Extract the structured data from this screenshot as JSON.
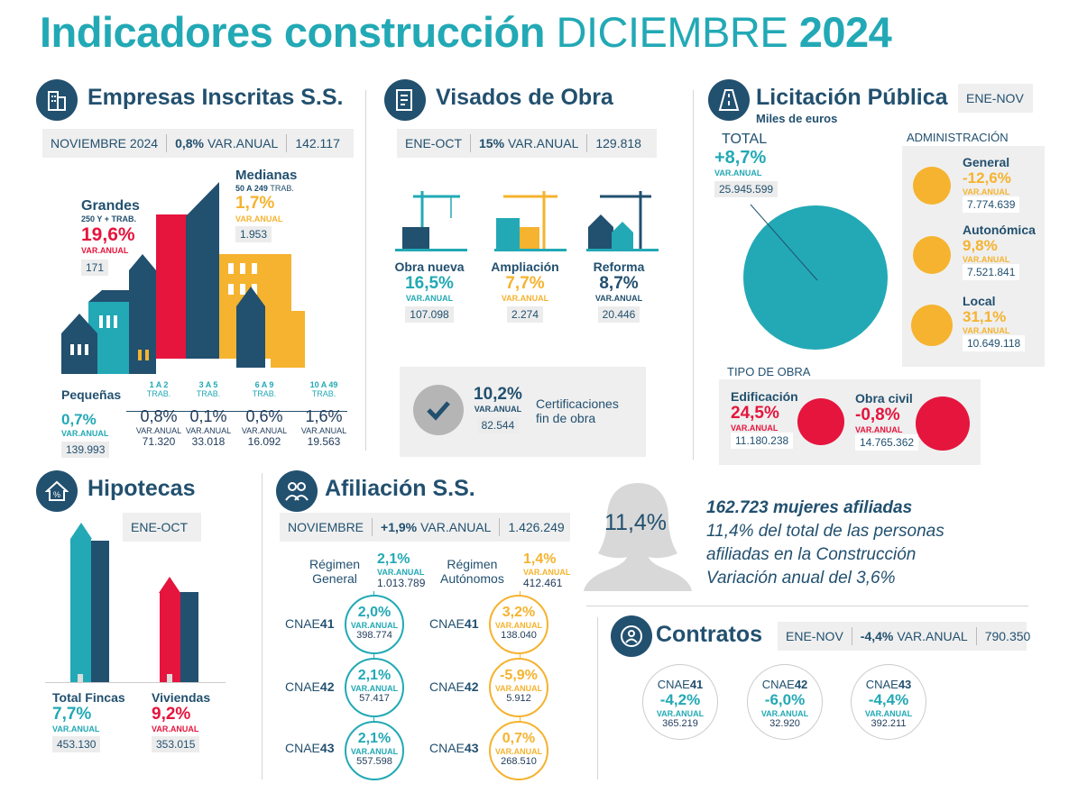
{
  "title": {
    "part1": "Indicadores construcción",
    "part2": "DICIEMBRE",
    "part3": "2024"
  },
  "empresas": {
    "title": "Empresas Inscritas S.S.",
    "bar": {
      "period": "NOVIEMBRE 2024",
      "pct": "0,8%",
      "label": "VAR.ANUAL",
      "total": "142.117"
    },
    "grandes": {
      "label": "Grandes",
      "sub": "250 Y + TRAB.",
      "pct": "19,6%",
      "va": "VAR.ANUAL",
      "num": "171"
    },
    "medianas": {
      "label": "Medianas",
      "sub": "50 A 249",
      "sub2": "TRAB.",
      "pct": "1,7%",
      "va": "VAR.ANUAL",
      "num": "1.953"
    },
    "pequenas": {
      "label": "Pequeñas",
      "pct": "0,7%",
      "va": "VAR.ANUAL",
      "num": "139.993"
    },
    "ranges": [
      {
        "range": "1 A 2",
        "trab": "TRAB.",
        "pct": "0,8%",
        "va": "VAR.ANUAL",
        "num": "71.320"
      },
      {
        "range": "3 A 5",
        "trab": "TRAB.",
        "pct": "0,1%",
        "va": "VAR.ANUAL",
        "num": "33.018"
      },
      {
        "range": "6 A 9",
        "trab": "TRAB.",
        "pct": "0,6%",
        "va": "VAR.ANUAL",
        "num": "16.092"
      },
      {
        "range": "10 A 49",
        "trab": "TRAB.",
        "pct": "1,6%",
        "va": "VAR.ANUAL",
        "num": "19.563"
      }
    ]
  },
  "visados": {
    "title": "Visados de Obra",
    "bar": {
      "period": "ENE-OCT",
      "pct": "15%",
      "label": "VAR.ANUAL",
      "total": "129.818"
    },
    "items": [
      {
        "label": "Obra nueva",
        "pct": "16,5%",
        "va": "VAR.ANUAL",
        "num": "107.098"
      },
      {
        "label": "Ampliación",
        "pct": "7,7%",
        "va": "VAR.ANUAL",
        "num": "2.274"
      },
      {
        "label": "Reforma",
        "pct": "8,7%",
        "va": "VAR.ANUAL",
        "num": "20.446"
      }
    ],
    "cert": {
      "pct": "10,2%",
      "va": "VAR.ANUAL",
      "num": "82.544",
      "label1": "Certificaciones",
      "label2": "fin de obra"
    }
  },
  "licitacion": {
    "title": "Licitación Pública",
    "sub": "Miles de euros",
    "period": "ENE-NOV",
    "total": {
      "label": "TOTAL",
      "pct": "+8,7%",
      "va": "VAR.ANUAL",
      "num": "25.945.599"
    },
    "admin_title": "ADMINISTRACIÓN",
    "admin": [
      {
        "label": "General",
        "pct": "-12,6%",
        "va": "VAR.ANUAL",
        "num": "7.774.639"
      },
      {
        "label": "Autonómica",
        "pct": "9,8%",
        "va": "VAR.ANUAL",
        "num": "7.521.841"
      },
      {
        "label": "Local",
        "pct": "31,1%",
        "va": "VAR.ANUAL",
        "num": "10.649.118"
      }
    ],
    "tipo_title": "TIPO DE OBRA",
    "tipo": [
      {
        "label": "Edificación",
        "pct": "24,5%",
        "va": "VAR.ANUAL",
        "num": "11.180.238"
      },
      {
        "label": "Obra civil",
        "pct": "-0,8%",
        "va": "VAR.ANUAL",
        "num": "14.765.362"
      }
    ]
  },
  "hipotecas": {
    "title": "Hipotecas",
    "period": "ENE-OCT",
    "fincas": {
      "label": "Total Fincas",
      "pct": "7,7%",
      "va": "VAR.ANUAL",
      "num": "453.130"
    },
    "viviendas": {
      "label": "Viviendas",
      "pct": "9,2%",
      "va": "VAR.ANUAL",
      "num": "353.015"
    }
  },
  "afiliacion": {
    "title": "Afiliación S.S.",
    "bar": {
      "period": "NOVIEMBRE",
      "pct": "+1,9%",
      "label": "VAR.ANUAL",
      "total": "1.426.249"
    },
    "general": {
      "label1": "Régimen",
      "label2": "General",
      "pct": "2,1%",
      "va": "VAR.ANUAL",
      "num": "1.013.789"
    },
    "autonomos": {
      "label1": "Régimen",
      "label2": "Autónomos",
      "pct": "1,4%",
      "va": "VAR.ANUAL",
      "num": "412.461"
    },
    "cnae_prefix": "CNAE",
    "general_cnae": [
      {
        "code": "41",
        "pct": "2,0%",
        "va": "VAR.ANUAL",
        "num": "398.774"
      },
      {
        "code": "42",
        "pct": "2,1%",
        "va": "VAR.ANUAL",
        "num": "57.417"
      },
      {
        "code": "43",
        "pct": "2,1%",
        "va": "VAR.ANUAL",
        "num": "557.598"
      }
    ],
    "autonomos_cnae": [
      {
        "code": "41",
        "pct": "3,2%",
        "va": "VAR.ANUAL",
        "num": "138.040"
      },
      {
        "code": "42",
        "pct": "-5,9%",
        "va": "VAR.ANUAL",
        "num": "5.912"
      },
      {
        "code": "43",
        "pct": "0,7%",
        "va": "VAR.ANUAL",
        "num": "268.510"
      }
    ]
  },
  "mujeres": {
    "pct": "11,4%",
    "line1": "162.723 mujeres afiliadas",
    "line2": "11,4% del total de  las personas",
    "line3": "afiliadas en la Construcción",
    "line4": "Variación anual del 3,6%"
  },
  "contratos": {
    "title": "Contratos",
    "bar": {
      "period": "ENE-NOV",
      "pct": "-4,4%",
      "label": "VAR.ANUAL",
      "total": "790.350"
    },
    "items": [
      {
        "prefix": "CNAE",
        "code": "41",
        "pct": "-4,2%",
        "va": "VAR.ANUAL",
        "num": "365.219"
      },
      {
        "prefix": "CNAE",
        "code": "42",
        "pct": "-6,0%",
        "va": "VAR.ANUAL",
        "num": "32.920"
      },
      {
        "prefix": "CNAE",
        "code": "43",
        "pct": "-4,4%",
        "va": "VAR.ANUAL",
        "num": "392.211"
      }
    ]
  },
  "colors": {
    "teal": "#22a9b5",
    "navy": "#22506f",
    "red": "#e5153d",
    "yellow": "#f5b32f",
    "grey": "#efefef"
  }
}
